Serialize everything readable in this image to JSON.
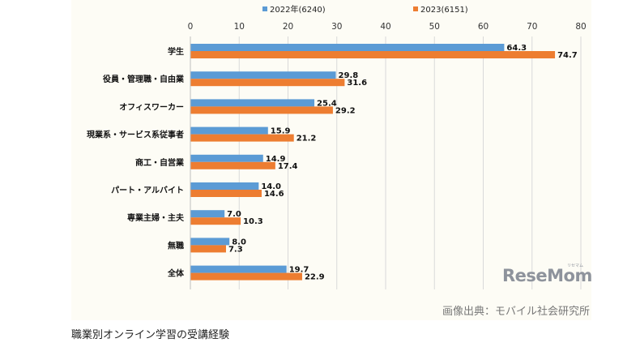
{
  "chart_data": {
    "type": "bar",
    "orientation": "horizontal",
    "categories": [
      "学生",
      "役員・管理職・自由業",
      "オフィスワーカー",
      "現業系・サービス系従事者",
      "商工・自営業",
      "パート・アルバイト",
      "専業主婦・主夫",
      "無職",
      "全体"
    ],
    "series": [
      {
        "name": "2022年(6240)",
        "values": [
          64.3,
          29.8,
          25.4,
          15.9,
          14.9,
          14.0,
          7.0,
          8.0,
          19.7
        ],
        "labels": [
          "64.3",
          "29.8",
          "25.4",
          "15.9",
          "14.9",
          "14.0",
          "7.0",
          "8.0",
          "19.7"
        ],
        "color": "#5b9bd5"
      },
      {
        "name": "2023(6151)",
        "values": [
          74.7,
          31.6,
          29.2,
          21.2,
          17.4,
          14.6,
          10.3,
          7.3,
          22.9
        ],
        "labels": [
          "74.7",
          "31.6",
          "29.2",
          "21.2",
          "17.4",
          "14.6",
          "10.3",
          "7.3",
          "22.9"
        ],
        "color": "#ed7d31"
      }
    ],
    "xlim": [
      0,
      80
    ],
    "ticks": [
      "0",
      "10",
      "20",
      "30",
      "40",
      "50",
      "60",
      "70",
      "80"
    ],
    "grid": true,
    "legend_position": "top"
  },
  "logo": {
    "text": "ReseMom",
    "subtext": "リセマム"
  },
  "source": "画像出典：モバイル社会研究所",
  "caption": "職業別オンライン学習の受講経験"
}
